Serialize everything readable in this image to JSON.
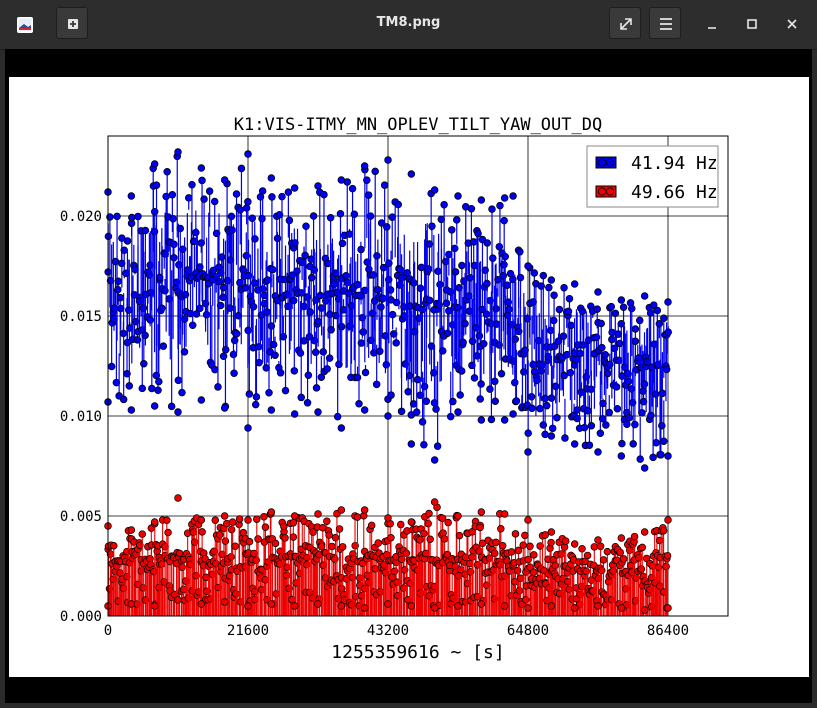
{
  "window": {
    "title": "TM8.png",
    "icons": {
      "app": "image-viewer-app-icon",
      "new": "new-document-icon",
      "fullscreen": "expand-arrows-icon",
      "menu": "hamburger-menu-icon",
      "minimize": "minimize-icon",
      "maximize": "maximize-icon",
      "close": "close-icon"
    }
  },
  "chart_data": {
    "type": "scatter",
    "title": "K1:VIS-ITMY_MN_OPLEV_TILT_YAW_OUT_DQ",
    "xlabel": "1255359616 ~ [s]",
    "ylabel": "",
    "xlim": [
      0,
      86400
    ],
    "ylim": [
      0.0,
      0.024
    ],
    "xticks": [
      "0",
      "21600",
      "43200",
      "64800",
      "86400"
    ],
    "yticks": [
      "0.000",
      "0.005",
      "0.010",
      "0.015",
      "0.020"
    ],
    "grid": true,
    "legend_position": "top-right",
    "style": "stem markers (circles on vertical lines)",
    "series": [
      {
        "name": "41.94 Hz",
        "color": "#0000ee",
        "x": [
          0,
          3600,
          7200,
          10800,
          14400,
          18000,
          21600,
          25200,
          28800,
          32400,
          36000,
          39600,
          43200,
          46800,
          50400,
          54000,
          57600,
          61200,
          62500,
          64800,
          68400,
          72000,
          75600,
          79200,
          82800,
          86400
        ],
        "y": [
          0.0165,
          0.0158,
          0.0162,
          0.0168,
          0.017,
          0.0166,
          0.0164,
          0.016,
          0.0162,
          0.0159,
          0.0161,
          0.016,
          0.0158,
          0.0157,
          0.0156,
          0.0154,
          0.0153,
          0.0152,
          0.0151,
          0.0125,
          0.0128,
          0.013,
          0.0127,
          0.0123,
          0.0122,
          0.0125
        ],
        "ymin": [
          0.0107,
          0.0103,
          0.0105,
          0.0102,
          0.0108,
          0.0104,
          0.0094,
          0.0103,
          0.0101,
          0.0102,
          0.0094,
          0.0103,
          0.01,
          0.0086,
          0.0078,
          0.0102,
          0.0098,
          0.0098,
          0.0101,
          0.0082,
          0.009,
          0.0086,
          0.0082,
          0.008,
          0.0074,
          0.008
        ],
        "ymax": [
          0.0212,
          0.021,
          0.0226,
          0.0232,
          0.0224,
          0.0218,
          0.0231,
          0.0219,
          0.0214,
          0.0215,
          0.0218,
          0.0225,
          0.0228,
          0.0221,
          0.0213,
          0.021,
          0.0208,
          0.0209,
          0.021,
          0.0175,
          0.0168,
          0.0166,
          0.0162,
          0.0158,
          0.016,
          0.0157
        ]
      },
      {
        "name": "49.66 Hz",
        "color": "#ee0000",
        "x": [
          0,
          3600,
          7200,
          10800,
          14400,
          18000,
          21600,
          25200,
          28800,
          32400,
          36000,
          39600,
          43200,
          46800,
          50400,
          54000,
          57600,
          61200,
          64800,
          68400,
          72000,
          75600,
          79200,
          82800,
          86400
        ],
        "y": [
          0.0028,
          0.0027,
          0.0029,
          0.003,
          0.0028,
          0.0027,
          0.0028,
          0.0029,
          0.003,
          0.0029,
          0.0028,
          0.0029,
          0.003,
          0.0029,
          0.0028,
          0.0029,
          0.0028,
          0.0027,
          0.0024,
          0.0023,
          0.0022,
          0.0023,
          0.0022,
          0.0023,
          0.0025
        ],
        "ymin": [
          0.0005,
          0.0006,
          0.0005,
          0.0008,
          0.0006,
          0.0007,
          0.0005,
          0.0006,
          0.0005,
          0.0006,
          0.0005,
          0.0004,
          0.0006,
          0.0005,
          0.0004,
          0.0005,
          0.0006,
          0.0005,
          0.0004,
          0.0005,
          0.0004,
          0.0005,
          0.0004,
          0.0003,
          0.0004
        ],
        "ymax": [
          0.0045,
          0.0043,
          0.0047,
          0.0059,
          0.0048,
          0.005,
          0.0048,
          0.0052,
          0.005,
          0.0051,
          0.0053,
          0.0053,
          0.0049,
          0.0047,
          0.0057,
          0.005,
          0.0052,
          0.0051,
          0.0048,
          0.0042,
          0.0036,
          0.0038,
          0.0039,
          0.0042,
          0.0048
        ]
      }
    ]
  }
}
